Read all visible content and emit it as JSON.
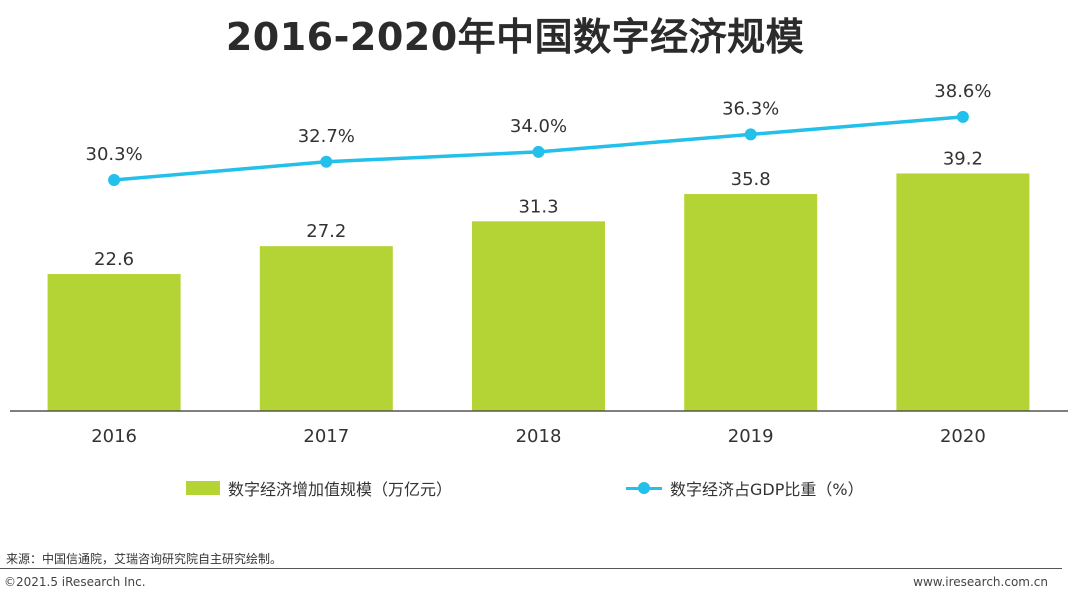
{
  "title": "2016-2020年中国数字经济规模",
  "chart_data": {
    "type": "bar",
    "categories": [
      "2016",
      "2017",
      "2018",
      "2019",
      "2020"
    ],
    "series": [
      {
        "name": "数字经济增加值规模（万亿元）",
        "type": "bar",
        "values": [
          22.6,
          27.2,
          31.3,
          35.8,
          39.2
        ],
        "labels": [
          "22.6",
          "27.2",
          "31.3",
          "35.8",
          "39.2"
        ],
        "color": "#b4d334"
      },
      {
        "name": "数字经济占GDP比重（%）",
        "type": "line",
        "values": [
          30.3,
          32.7,
          34.0,
          36.3,
          38.6
        ],
        "labels": [
          "30.3%",
          "32.7%",
          "34.0%",
          "36.3%",
          "38.6%"
        ],
        "color": "#22c0ea"
      }
    ],
    "grid": false,
    "legend_position": "bottom"
  },
  "source": "来源：中国信通院，艾瑞咨询研究院自主研究绘制。",
  "copyright": "©2021.5 iResearch Inc.",
  "website": "www.iresearch.com.cn"
}
